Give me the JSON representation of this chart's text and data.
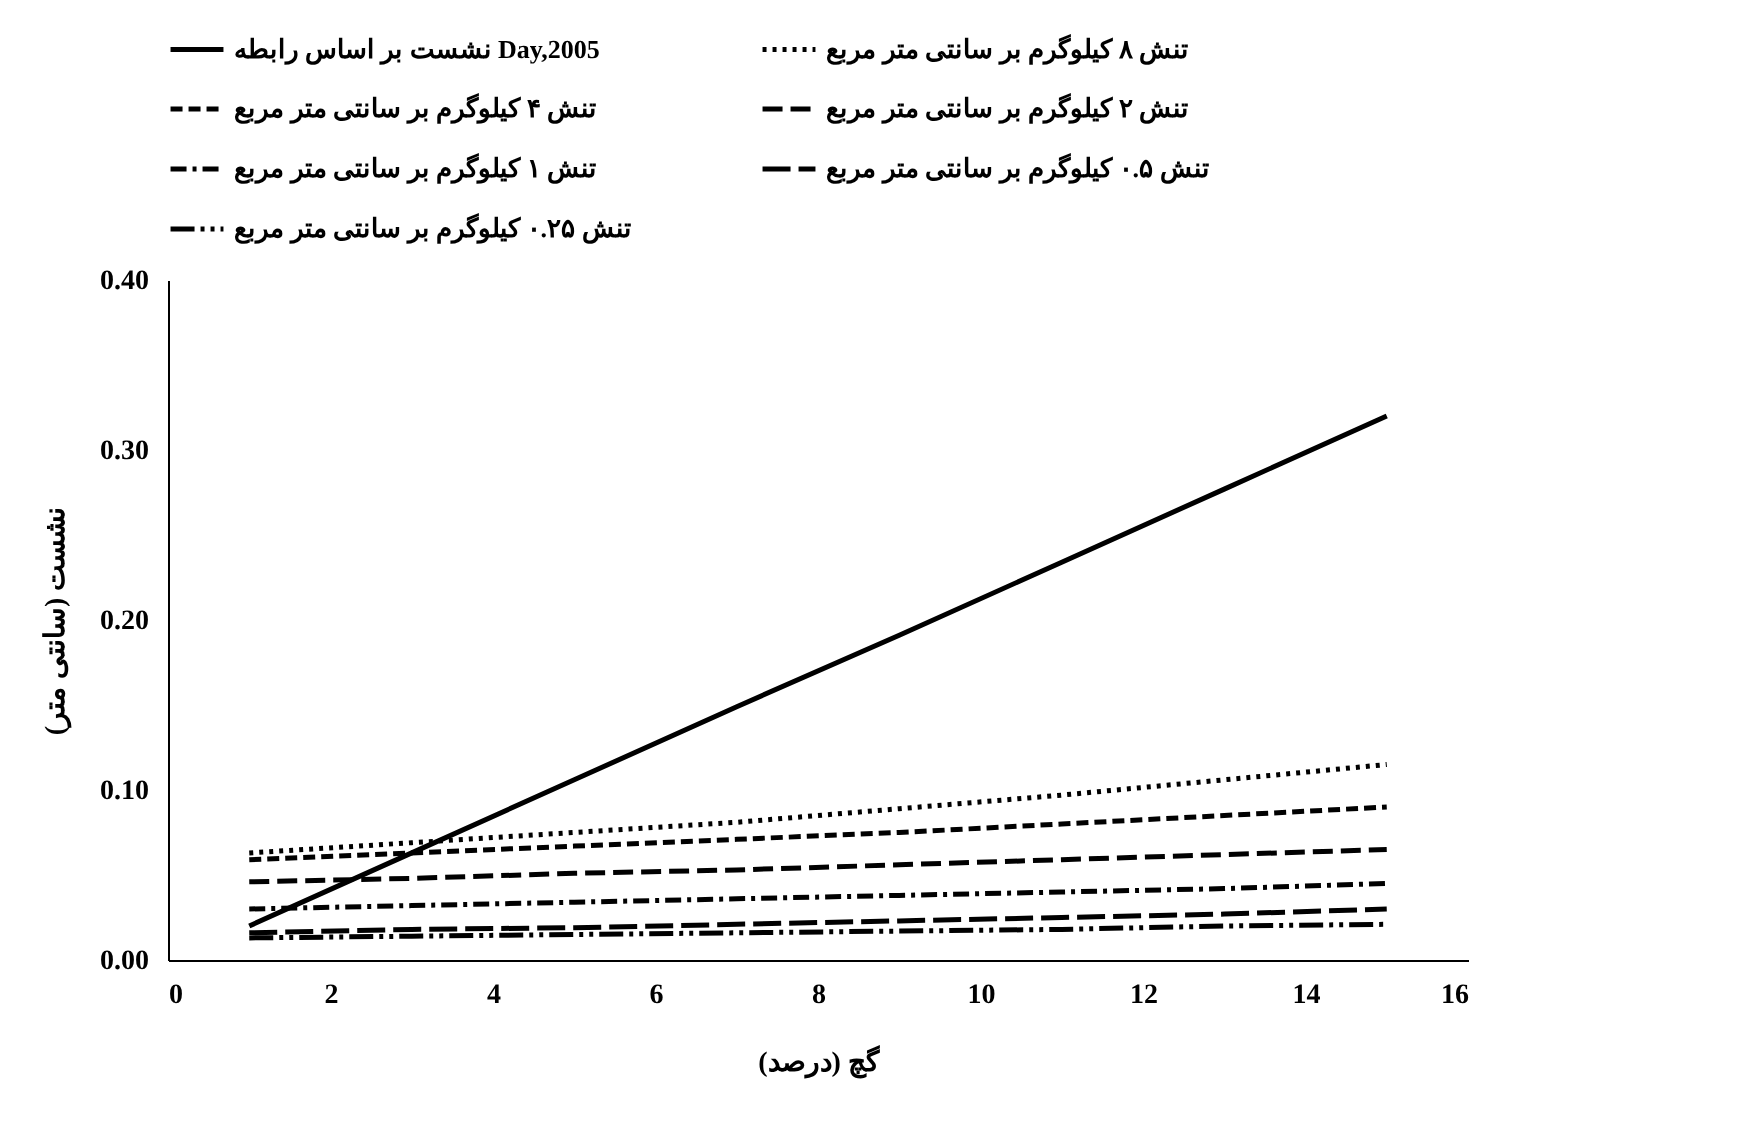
{
  "chart_data": {
    "type": "line",
    "xlabel": "گچ (درصد)",
    "ylabel": "نشست (سانتی متر)",
    "x": [
      1,
      3,
      5,
      7,
      9,
      11,
      13,
      15
    ],
    "series": [
      {
        "name": "نشست بر اساس رابطه Day,2005",
        "color": "#000000",
        "line_style": "solid",
        "values": [
          0.02,
          0.063,
          0.106,
          0.149,
          0.191,
          0.234,
          0.277,
          0.32
        ]
      },
      {
        "name": "تنش ۸ کیلوگرم بر سانتی متر مربع",
        "color": "#000000",
        "line_style": "dotted",
        "values": [
          0.063,
          0.069,
          0.075,
          0.081,
          0.089,
          0.097,
          0.106,
          0.115
        ]
      },
      {
        "name": "تنش ۴ کیلوگرم بر سانتی متر مربع",
        "color": "#000000",
        "line_style": "dashed",
        "values": [
          0.059,
          0.063,
          0.067,
          0.071,
          0.075,
          0.08,
          0.085,
          0.09
        ]
      },
      {
        "name": "تنش ۲ کیلوگرم بر سانتی متر مربع",
        "color": "#000000",
        "line_style": "dashed",
        "values": [
          0.046,
          0.048,
          0.051,
          0.053,
          0.056,
          0.059,
          0.062,
          0.065
        ]
      },
      {
        "name": "تنش ۱ کیلوگرم بر سانتی متر مربع",
        "color": "#000000",
        "line_style": "dashed",
        "values": [
          0.03,
          0.032,
          0.034,
          0.036,
          0.038,
          0.04,
          0.042,
          0.045
        ]
      },
      {
        "name": "تنش ۰.۵ کیلوگرم بر سانتی متر مربع",
        "color": "#000000",
        "line_style": "dashed",
        "values": [
          0.016,
          0.018,
          0.019,
          0.021,
          0.023,
          0.025,
          0.027,
          0.03
        ]
      },
      {
        "name": "تنش ۰.۲۵ کیلوگرم بر سانتی متر مربع",
        "color": "#000000",
        "line_style": "dashed",
        "values": [
          0.013,
          0.014,
          0.015,
          0.016,
          0.017,
          0.018,
          0.02,
          0.021
        ]
      }
    ],
    "xlim": [
      0,
      16
    ],
    "xticks": [
      0,
      2,
      4,
      6,
      8,
      10,
      12,
      14,
      16
    ],
    "ylim": [
      0,
      0.4
    ],
    "yticks": [
      {
        "value": 0,
        "label": "0.00"
      },
      {
        "value": 0.1,
        "label": "0.10"
      },
      {
        "value": 0.2,
        "label": "0.20"
      },
      {
        "value": 0.3,
        "label": "0.30"
      },
      {
        "value": 0.4,
        "label": "0.40"
      }
    ],
    "legend": "top",
    "grid": false
  }
}
